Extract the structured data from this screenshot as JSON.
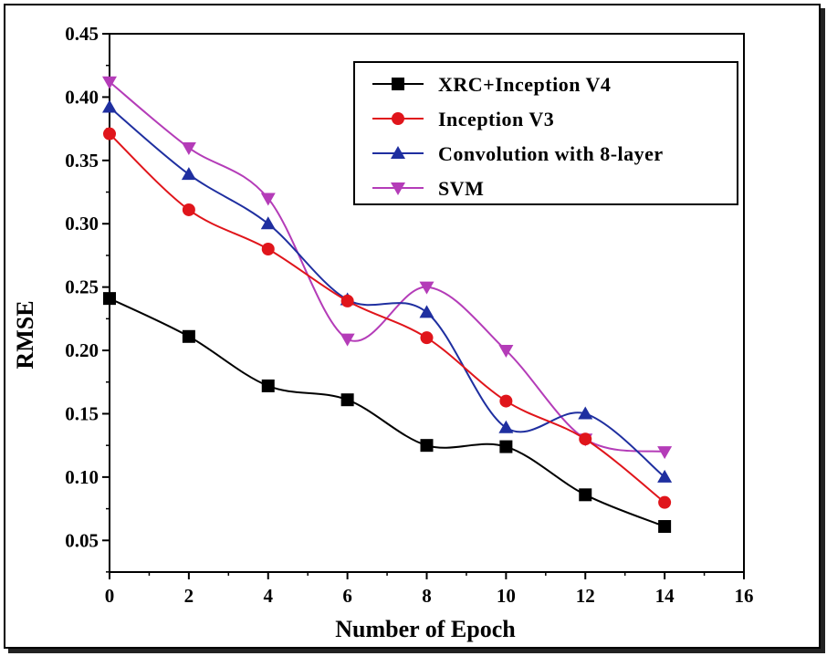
{
  "chart_data": {
    "type": "line",
    "title": "",
    "xlabel": "Number of Epoch",
    "ylabel": "RMSE",
    "xlim": [
      0,
      16
    ],
    "ylim": [
      0.025,
      0.45
    ],
    "x_ticks": [
      0,
      2,
      4,
      6,
      8,
      10,
      12,
      14,
      16
    ],
    "x_tick_labels": [
      "0",
      "2",
      "4",
      "6",
      "8",
      "10",
      "12",
      "14",
      "16"
    ],
    "y_ticks": [
      0.05,
      0.1,
      0.15,
      0.2,
      0.25,
      0.3,
      0.35,
      0.4,
      0.45
    ],
    "y_tick_labels": [
      "0.05",
      "0.10",
      "0.15",
      "0.20",
      "0.25",
      "0.30",
      "0.35",
      "0.40",
      "0.45"
    ],
    "legend_position": "top-right",
    "x": [
      0,
      2,
      4,
      6,
      8,
      10,
      12,
      14
    ],
    "series": [
      {
        "name": "XRC+Inception V4",
        "color": "#000000",
        "marker": "square",
        "values": [
          0.241,
          0.211,
          0.172,
          0.161,
          0.125,
          0.124,
          0.086,
          0.061
        ]
      },
      {
        "name": "Inception V3",
        "color": "#e0151b",
        "marker": "circle",
        "values": [
          0.371,
          0.311,
          0.28,
          0.239,
          0.21,
          0.16,
          0.13,
          0.08
        ]
      },
      {
        "name": "Convolution with 8-layer",
        "color": "#1f2fa0",
        "marker": "triangle-up",
        "values": [
          0.392,
          0.339,
          0.3,
          0.24,
          0.23,
          0.139,
          0.15,
          0.1
        ]
      },
      {
        "name": "SVM",
        "color": "#b43cb8",
        "marker": "triangle-down",
        "values": [
          0.412,
          0.36,
          0.32,
          0.209,
          0.25,
          0.2,
          0.13,
          0.12
        ]
      }
    ]
  }
}
